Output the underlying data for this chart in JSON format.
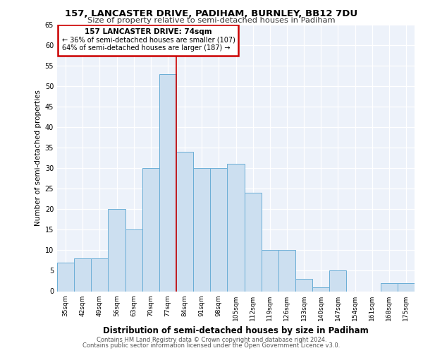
{
  "title1": "157, LANCASTER DRIVE, PADIHAM, BURNLEY, BB12 7DU",
  "title2": "Size of property relative to semi-detached houses in Padiham",
  "xlabel": "Distribution of semi-detached houses by size in Padiham",
  "ylabel": "Number of semi-detached properties",
  "categories": [
    "35sqm",
    "42sqm",
    "49sqm",
    "56sqm",
    "63sqm",
    "70sqm",
    "77sqm",
    "84sqm",
    "91sqm",
    "98sqm",
    "105sqm",
    "112sqm",
    "119sqm",
    "126sqm",
    "133sqm",
    "140sqm",
    "147sqm",
    "154sqm",
    "161sqm",
    "168sqm",
    "175sqm"
  ],
  "values": [
    7,
    8,
    8,
    20,
    15,
    30,
    53,
    34,
    30,
    30,
    31,
    24,
    10,
    10,
    3,
    1,
    5,
    0,
    0,
    2,
    2
  ],
  "bar_color": "#ccdff0",
  "bar_edge_color": "#6aaed6",
  "vline_color": "#cc0000",
  "vline_x": 6.5,
  "annotation_box_color": "#cc0000",
  "property_label": "157 LANCASTER DRIVE: 74sqm",
  "pct_smaller": 36,
  "n_smaller": 107,
  "pct_larger": 64,
  "n_larger": 187,
  "ylim": [
    0,
    65
  ],
  "yticks": [
    0,
    5,
    10,
    15,
    20,
    25,
    30,
    35,
    40,
    45,
    50,
    55,
    60,
    65
  ],
  "footer1": "Contains HM Land Registry data © Crown copyright and database right 2024.",
  "footer2": "Contains public sector information licensed under the Open Government Licence v3.0.",
  "plot_bg_color": "#edf2fa"
}
